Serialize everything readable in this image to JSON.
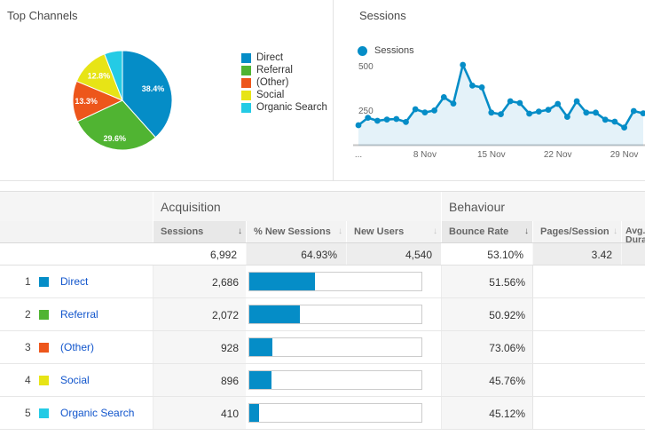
{
  "pie_panel": {
    "title": "Top Channels",
    "chart_data": {
      "type": "pie",
      "title": "Top Channels",
      "categories": [
        "Direct",
        "Referral",
        "(Other)",
        "Social",
        "Organic Search"
      ],
      "values": [
        38.4,
        29.6,
        13.3,
        12.8,
        5.9
      ],
      "slice_labels": [
        "38.4%",
        "29.6%",
        "13.3%",
        "12.8%",
        ""
      ],
      "colors": [
        "#058dc7",
        "#50b432",
        "#ed561b",
        "#e7e416",
        "#24cbe5"
      ],
      "legend_position": "right"
    }
  },
  "sessions_panel": {
    "title": "Sessions",
    "legend_label": "Sessions",
    "chart_data": {
      "type": "line",
      "series_name": "Sessions",
      "values": [
        175,
        217,
        200,
        207,
        210,
        193,
        265,
        247,
        258,
        333,
        297,
        515,
        398,
        388,
        246,
        237,
        310,
        300,
        240,
        252,
        262,
        295,
        222,
        310,
        246,
        246,
        206,
        195,
        162,
        255,
        242
      ],
      "y_ticks": [
        250,
        500
      ],
      "ylim": [
        0,
        560
      ],
      "x_ticks": [
        {
          "label": "...",
          "index": 0
        },
        {
          "label": "8 Nov",
          "index": 7
        },
        {
          "label": "15 Nov",
          "index": 14
        },
        {
          "label": "22 Nov",
          "index": 21
        },
        {
          "label": "29 Nov",
          "index": 28
        }
      ],
      "line_color": "#058dc7",
      "area_fill": "rgba(5,141,199,0.11)",
      "grid": false
    }
  },
  "table": {
    "group_headers": [
      "Acquisition",
      "Behaviour"
    ],
    "columns": [
      {
        "label": "Sessions",
        "sorted": true
      },
      {
        "label": "% New Sessions",
        "sorted": false
      },
      {
        "label": "New Users",
        "sorted": false
      },
      {
        "label": "Bounce Rate",
        "sorted": true
      },
      {
        "label": "Pages/Session",
        "sorted": false
      },
      {
        "label": "Avg. Duration",
        "sorted": false
      }
    ],
    "sort_arrow": "↓",
    "totals": {
      "sessions": "6,992",
      "pct_new_sessions": "64.93%",
      "new_users": "4,540",
      "bounce_rate": "53.10%",
      "pages_per_session": "3.42"
    },
    "rows": [
      {
        "rank": "1",
        "channel": "Direct",
        "swatch_color": "#058dc7",
        "sessions": "2,686",
        "sessions_share_pct": 38.4,
        "bounce_rate": "51.56%",
        "bounce_rate_pct": 51.56
      },
      {
        "rank": "2",
        "channel": "Referral",
        "swatch_color": "#50b432",
        "sessions": "2,072",
        "sessions_share_pct": 29.6,
        "bounce_rate": "50.92%",
        "bounce_rate_pct": 50.92
      },
      {
        "rank": "3",
        "channel": "(Other)",
        "swatch_color": "#ed561b",
        "sessions": "928",
        "sessions_share_pct": 13.3,
        "bounce_rate": "73.06%",
        "bounce_rate_pct": 73.06
      },
      {
        "rank": "4",
        "channel": "Social",
        "swatch_color": "#e7e416",
        "sessions": "896",
        "sessions_share_pct": 12.8,
        "bounce_rate": "45.76%",
        "bounce_rate_pct": 45.76
      },
      {
        "rank": "5",
        "channel": "Organic Search",
        "swatch_color": "#24cbe5",
        "sessions": "410",
        "sessions_share_pct": 5.9,
        "bounce_rate": "45.12%",
        "bounce_rate_pct": 45.12
      }
    ]
  },
  "colors": {
    "accent_blue": "#058dc7",
    "link_blue": "#1155cc"
  }
}
